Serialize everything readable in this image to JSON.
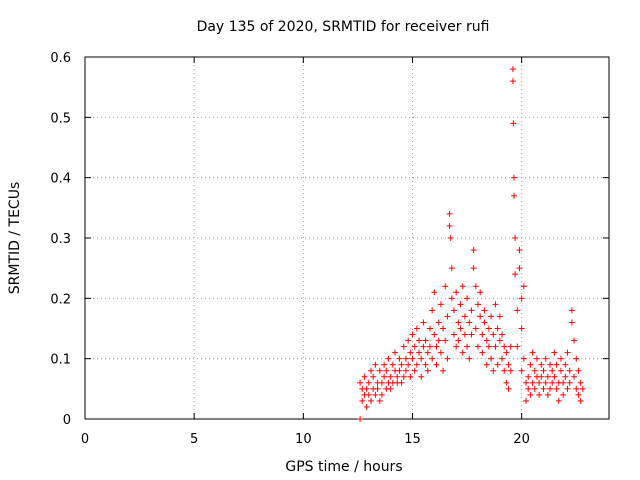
{
  "chart_data": {
    "type": "scatter",
    "title": "Day 135 of 2020, SRMTID for receiver rufi",
    "xlabel": "GPS time / hours",
    "ylabel": "SRMTID / TECUs",
    "xlim": [
      0,
      24
    ],
    "ylim": [
      0,
      0.6
    ],
    "xticks": [
      0,
      5,
      10,
      15,
      20
    ],
    "yticks": [
      0,
      0.1,
      0.2,
      0.3,
      0.4,
      0.5,
      0.6
    ],
    "xtick_labels": [
      "0",
      "5",
      "10",
      "15",
      "20"
    ],
    "ytick_labels": [
      "0",
      "0.1",
      "0.2",
      "0.3",
      "0.4",
      "0.5",
      "0.6"
    ],
    "grid": true,
    "marker": "+",
    "color": "#ff0000",
    "series": [
      {
        "name": "SRMTID",
        "points": [
          [
            12.6,
            0.0
          ],
          [
            12.6,
            0.06
          ],
          [
            12.7,
            0.05
          ],
          [
            12.7,
            0.03
          ],
          [
            12.8,
            0.07
          ],
          [
            12.8,
            0.04
          ],
          [
            12.9,
            0.05
          ],
          [
            12.9,
            0.02
          ],
          [
            13.0,
            0.06
          ],
          [
            13.0,
            0.04
          ],
          [
            13.1,
            0.08
          ],
          [
            13.1,
            0.03
          ],
          [
            13.2,
            0.05
          ],
          [
            13.2,
            0.07
          ],
          [
            13.3,
            0.04
          ],
          [
            13.3,
            0.09
          ],
          [
            13.4,
            0.06
          ],
          [
            13.4,
            0.05
          ],
          [
            13.5,
            0.03
          ],
          [
            13.5,
            0.08
          ],
          [
            13.6,
            0.06
          ],
          [
            13.6,
            0.04
          ],
          [
            13.7,
            0.07
          ],
          [
            13.7,
            0.09
          ],
          [
            13.8,
            0.05
          ],
          [
            13.8,
            0.08
          ],
          [
            13.9,
            0.06
          ],
          [
            13.9,
            0.1
          ],
          [
            14.0,
            0.07
          ],
          [
            14.0,
            0.05
          ],
          [
            14.1,
            0.09
          ],
          [
            14.1,
            0.06
          ],
          [
            14.2,
            0.08
          ],
          [
            14.2,
            0.11
          ],
          [
            14.3,
            0.07
          ],
          [
            14.3,
            0.06
          ],
          [
            14.4,
            0.1
          ],
          [
            14.4,
            0.08
          ],
          [
            14.5,
            0.06
          ],
          [
            14.5,
            0.09
          ],
          [
            14.6,
            0.12
          ],
          [
            14.6,
            0.07
          ],
          [
            14.7,
            0.1
          ],
          [
            14.7,
            0.08
          ],
          [
            14.8,
            0.13
          ],
          [
            14.8,
            0.09
          ],
          [
            14.9,
            0.11
          ],
          [
            14.9,
            0.07
          ],
          [
            15.0,
            0.14
          ],
          [
            15.0,
            0.1
          ],
          [
            15.1,
            0.12
          ],
          [
            15.1,
            0.08
          ],
          [
            15.2,
            0.15
          ],
          [
            15.2,
            0.09
          ],
          [
            15.3,
            0.11
          ],
          [
            15.3,
            0.13
          ],
          [
            15.4,
            0.07
          ],
          [
            15.4,
            0.1
          ],
          [
            15.5,
            0.12
          ],
          [
            15.5,
            0.16
          ],
          [
            15.6,
            0.09
          ],
          [
            15.6,
            0.13
          ],
          [
            15.7,
            0.11
          ],
          [
            15.7,
            0.08
          ],
          [
            15.8,
            0.15
          ],
          [
            15.8,
            0.12
          ],
          [
            15.9,
            0.18
          ],
          [
            15.9,
            0.1
          ],
          [
            16.0,
            0.14
          ],
          [
            16.0,
            0.21
          ],
          [
            16.1,
            0.12
          ],
          [
            16.1,
            0.09
          ],
          [
            16.2,
            0.16
          ],
          [
            16.2,
            0.13
          ],
          [
            16.3,
            0.19
          ],
          [
            16.3,
            0.11
          ],
          [
            16.4,
            0.15
          ],
          [
            16.4,
            0.08
          ],
          [
            16.5,
            0.22
          ],
          [
            16.5,
            0.13
          ],
          [
            16.6,
            0.17
          ],
          [
            16.6,
            0.1
          ],
          [
            16.7,
            0.34
          ],
          [
            16.7,
            0.32
          ],
          [
            16.75,
            0.3
          ],
          [
            16.8,
            0.25
          ],
          [
            16.8,
            0.2
          ],
          [
            16.9,
            0.14
          ],
          [
            16.9,
            0.18
          ],
          [
            17.0,
            0.12
          ],
          [
            17.0,
            0.21
          ],
          [
            17.1,
            0.16
          ],
          [
            17.1,
            0.13
          ],
          [
            17.2,
            0.19
          ],
          [
            17.2,
            0.15
          ],
          [
            17.3,
            0.22
          ],
          [
            17.3,
            0.11
          ],
          [
            17.4,
            0.17
          ],
          [
            17.4,
            0.14
          ],
          [
            17.5,
            0.2
          ],
          [
            17.5,
            0.12
          ],
          [
            17.6,
            0.16
          ],
          [
            17.6,
            0.1
          ],
          [
            17.7,
            0.18
          ],
          [
            17.7,
            0.14
          ],
          [
            17.8,
            0.28
          ],
          [
            17.8,
            0.25
          ],
          [
            17.9,
            0.22
          ],
          [
            17.9,
            0.15
          ],
          [
            18.0,
            0.19
          ],
          [
            18.0,
            0.12
          ],
          [
            18.1,
            0.17
          ],
          [
            18.1,
            0.21
          ],
          [
            18.2,
            0.14
          ],
          [
            18.2,
            0.11
          ],
          [
            18.3,
            0.18
          ],
          [
            18.3,
            0.16
          ],
          [
            18.4,
            0.13
          ],
          [
            18.4,
            0.09
          ],
          [
            18.5,
            0.15
          ],
          [
            18.5,
            0.12
          ],
          [
            18.6,
            0.17
          ],
          [
            18.6,
            0.1
          ],
          [
            18.7,
            0.14
          ],
          [
            18.7,
            0.08
          ],
          [
            18.8,
            0.19
          ],
          [
            18.8,
            0.12
          ],
          [
            18.9,
            0.15
          ],
          [
            18.9,
            0.09
          ],
          [
            19.0,
            0.13
          ],
          [
            19.0,
            0.17
          ],
          [
            19.1,
            0.1
          ],
          [
            19.1,
            0.14
          ],
          [
            19.2,
            0.08
          ],
          [
            19.2,
            0.12
          ],
          [
            19.3,
            0.06
          ],
          [
            19.3,
            0.11
          ],
          [
            19.4,
            0.09
          ],
          [
            19.4,
            0.05
          ],
          [
            19.5,
            0.08
          ],
          [
            19.5,
            0.12
          ],
          [
            19.6,
            0.58
          ],
          [
            19.6,
            0.56
          ],
          [
            19.62,
            0.49
          ],
          [
            19.65,
            0.4
          ],
          [
            19.65,
            0.37
          ],
          [
            19.7,
            0.3
          ],
          [
            19.7,
            0.24
          ],
          [
            19.8,
            0.18
          ],
          [
            19.8,
            0.12
          ],
          [
            19.9,
            0.28
          ],
          [
            19.9,
            0.25
          ],
          [
            20.0,
            0.2
          ],
          [
            20.0,
            0.15
          ],
          [
            20.0,
            0.08
          ],
          [
            20.1,
            0.22
          ],
          [
            20.1,
            0.1
          ],
          [
            20.2,
            0.06
          ],
          [
            20.2,
            0.03
          ],
          [
            20.3,
            0.07
          ],
          [
            20.3,
            0.05
          ],
          [
            20.4,
            0.09
          ],
          [
            20.4,
            0.04
          ],
          [
            20.5,
            0.11
          ],
          [
            20.5,
            0.06
          ],
          [
            20.6,
            0.08
          ],
          [
            20.6,
            0.05
          ],
          [
            20.7,
            0.1
          ],
          [
            20.7,
            0.07
          ],
          [
            20.8,
            0.06
          ],
          [
            20.8,
            0.04
          ],
          [
            20.9,
            0.09
          ],
          [
            20.9,
            0.07
          ],
          [
            21.0,
            0.05
          ],
          [
            21.0,
            0.08
          ],
          [
            21.1,
            0.06
          ],
          [
            21.1,
            0.1
          ],
          [
            21.2,
            0.04
          ],
          [
            21.2,
            0.07
          ],
          [
            21.3,
            0.09
          ],
          [
            21.3,
            0.05
          ],
          [
            21.4,
            0.08
          ],
          [
            21.4,
            0.06
          ],
          [
            21.5,
            0.11
          ],
          [
            21.5,
            0.07
          ],
          [
            21.6,
            0.05
          ],
          [
            21.6,
            0.09
          ],
          [
            21.7,
            0.06
          ],
          [
            21.7,
            0.03
          ],
          [
            21.8,
            0.08
          ],
          [
            21.8,
            0.1
          ],
          [
            21.9,
            0.06
          ],
          [
            21.9,
            0.04
          ],
          [
            22.0,
            0.09
          ],
          [
            22.0,
            0.07
          ],
          [
            22.1,
            0.05
          ],
          [
            22.1,
            0.11
          ],
          [
            22.2,
            0.08
          ],
          [
            22.2,
            0.06
          ],
          [
            22.3,
            0.18
          ],
          [
            22.3,
            0.16
          ],
          [
            22.4,
            0.13
          ],
          [
            22.4,
            0.07
          ],
          [
            22.5,
            0.1
          ],
          [
            22.5,
            0.05
          ],
          [
            22.6,
            0.08
          ],
          [
            22.6,
            0.04
          ],
          [
            22.7,
            0.06
          ],
          [
            22.7,
            0.03
          ],
          [
            22.8,
            0.05
          ]
        ]
      }
    ]
  }
}
